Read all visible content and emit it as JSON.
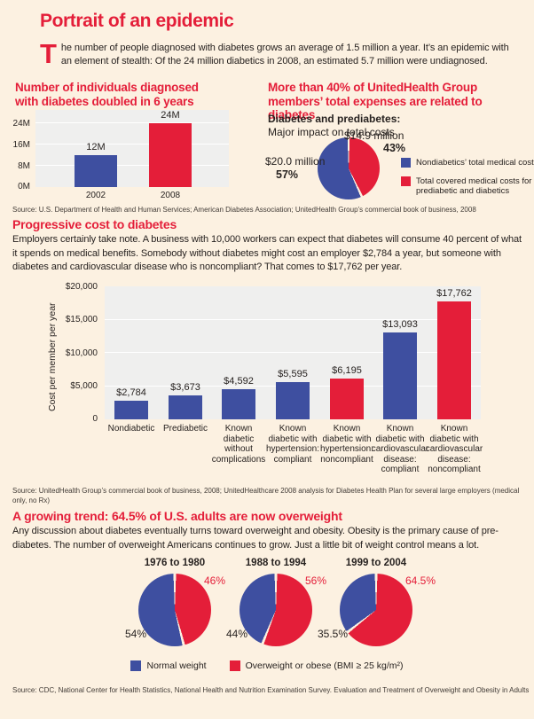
{
  "colors": {
    "red": "#E41E39",
    "blue": "#3E4FA0",
    "bg": "#FCF1E1",
    "plot": "#EFEFEE",
    "ink": "#272220",
    "src": "#413B36"
  },
  "header": {
    "title": "Portrait of an epidemic",
    "intro_dropcap": "T",
    "intro_text": "he number of people diagnosed with diabetes grows an average of 1.5 million a year. It’s an epidemic with an element of stealth: Of the 24 million diabetics in 2008, an estimated 5.7 million were undiagnosed."
  },
  "sections": {
    "cost_heading": "Progressive cost to diabetes",
    "cost_body": "Employers certainly take note. A business with 10,000 workers can expect that diabetes will consume 40 percent of what it spends on medical benefits. Somebody without diabetes might cost an employer $2,784 a year, but someone with diabetes and cardiovascular disease who is noncompliant? That comes to $17,762 per year.",
    "trend_heading": "A growing trend: 64.5% of U.S. adults are now overweight",
    "trend_body": "Any discussion about diabetes eventually turns toward overweight and obesity. Obesity is the primary cause of pre-diabetes. The number of overweight Americans continues to grow. Just a little bit of weight control means a lot."
  },
  "sources": {
    "s1": "Source: U.S. Department of Health and Human Services; American Diabetes Association; UnitedHealth Group’s commercial book of business, 2008",
    "s2": "Source: UnitedHealth Group’s commercial book of business, 2008; UnitedHealthcare 2008 analysis for Diabetes Health Plan for several large employers (medical only, no Rx)",
    "s3": "Source: CDC, National Center for Health Statistics, National Health and Nutrition Examination Survey. Evaluation and Treatment of Overweight and Obesity in Adults"
  },
  "chart_data": [
    {
      "id": "diagnosed-individuals",
      "type": "bar",
      "title": "Number of individuals diagnosed with diabetes doubled in 6 years",
      "categories": [
        "2002",
        "2008"
      ],
      "values": [
        12,
        24
      ],
      "unit": "millions of people",
      "value_labels": [
        "12M",
        "24M"
      ],
      "bar_colors": [
        "blue",
        "red"
      ],
      "y_ticks": [
        "24M",
        "16M",
        "8M",
        "0M"
      ],
      "ylim": [
        0,
        24
      ],
      "grid": true
    },
    {
      "id": "uhg-cost-share",
      "type": "pie",
      "title": "More than 40% of UnitedHealth Group members’ total expenses are related to diabetes",
      "subtitle_bold": "Diabetes and prediabetes:",
      "subtitle": "Major impact on total costs",
      "slices": [
        {
          "label": "Nondiabetics’ total medical costs",
          "value_label": "$20.0 million",
          "pct_label": "57%",
          "pct": 57,
          "color": "blue"
        },
        {
          "label": "Total covered medical costs for prediabetic and diabetics",
          "value_label": "$14.9 million",
          "pct_label": "43%",
          "pct": 43,
          "color": "red"
        }
      ],
      "legend": [
        "Nondiabetics’ total medical costs",
        "Total covered medical costs for prediabetic and diabetics"
      ],
      "legend_position": "right"
    },
    {
      "id": "cost-per-member",
      "type": "bar",
      "ylabel": "Cost per member per year",
      "categories": [
        "Nondiabetic",
        "Prediabetic",
        "Known diabetic without complications",
        "Known diabetic with hypertension: compliant",
        "Known diabetic with hypertension: noncompliant",
        "Known diabetic with cardiovascular disease: compliant",
        "Known diabetic with cardiovascular disease: noncompliant"
      ],
      "values": [
        2784,
        3673,
        4592,
        5595,
        6195,
        13093,
        17762
      ],
      "value_labels": [
        "$2,784",
        "$3,673",
        "$4,592",
        "$5,595",
        "$6,195",
        "$13,093",
        "$17,762"
      ],
      "bar_colors": [
        "blue",
        "blue",
        "blue",
        "blue",
        "red",
        "blue",
        "red"
      ],
      "y_ticks": [
        "$20,000",
        "$15,000",
        "$10,000",
        "$5,000",
        "0"
      ],
      "ylim": [
        0,
        20000
      ],
      "grid": true
    },
    {
      "id": "overweight-trend",
      "type": "pie",
      "pies": [
        {
          "title": "1976 to 1980",
          "normal_pct": 54,
          "overweight_pct": 46,
          "normal_label": "54%",
          "overweight_label": "46%"
        },
        {
          "title": "1988 to 1994",
          "normal_pct": 44,
          "overweight_pct": 56,
          "normal_label": "44%",
          "overweight_label": "56%"
        },
        {
          "title": "1999 to 2004",
          "normal_pct": 35.5,
          "overweight_pct": 64.5,
          "normal_label": "35.5%",
          "overweight_label": "64.5%"
        }
      ],
      "legend": [
        "Normal weight",
        "Overweight or obese (BMI ≥ 25 kg/m²)"
      ],
      "legend_position": "bottom"
    }
  ]
}
